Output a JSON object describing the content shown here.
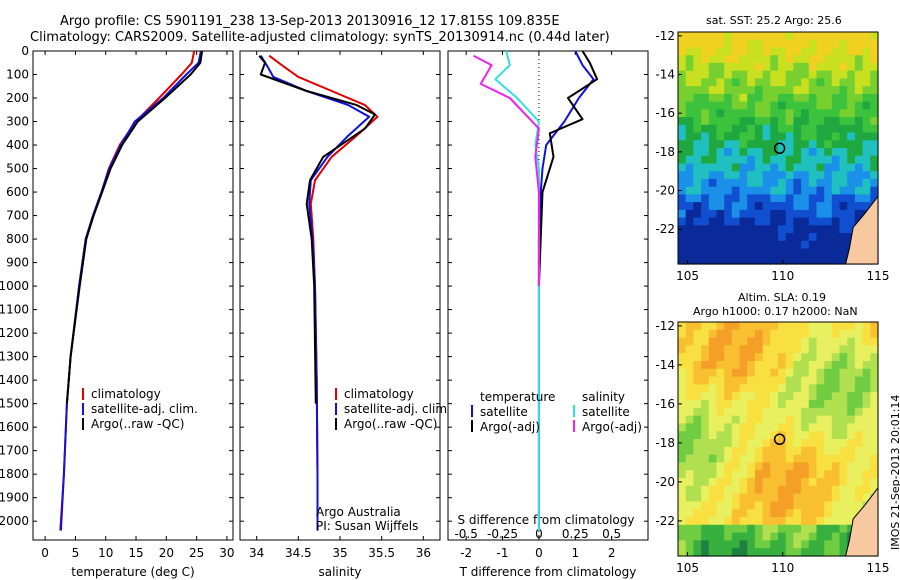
{
  "header": {
    "title_line1": "Argo profile: CS 5901191_238 13-Sep-2013 20130916_12 17.815S 109.835E",
    "title_line2": "Climatology: CARS2009. Satellite-adjusted climatology: synTS_20130914.nc (0.44d later)"
  },
  "colors": {
    "climatology": "#e00000",
    "satellite": "#1010e0",
    "argo": "#000000",
    "sal_satellite": "#30e0e0",
    "sal_argo": "#ee22ee"
  },
  "chart_data": [
    {
      "type": "line",
      "name": "temperature",
      "xlabel": "temperature (deg C)",
      "xlim": [
        -2,
        31
      ],
      "ylim": [
        0,
        2080
      ],
      "xticks": [
        0,
        5,
        10,
        15,
        20,
        25,
        30
      ],
      "yticks": [
        0,
        100,
        200,
        300,
        400,
        500,
        600,
        700,
        800,
        900,
        1000,
        1100,
        1200,
        1300,
        1400,
        1500,
        1600,
        1700,
        1800,
        1900,
        2000
      ],
      "legend": [
        "climatology",
        "satellite-adj. clim.",
        "Argo(..raw -QC)"
      ],
      "series": [
        {
          "name": "climatology",
          "color": "#e00000",
          "x": [
            24.6,
            24.2,
            22.5,
            18.8,
            15.0,
            12.3,
            10.5,
            9.3,
            7.9,
            6.7,
            5.6,
            4.2,
            3.6,
            3.1,
            2.5
          ],
          "y": [
            0,
            50,
            100,
            200,
            300,
            400,
            500,
            600,
            700,
            800,
            1000,
            1300,
            1500,
            1800,
            2040
          ]
        },
        {
          "name": "satellite-adj. clim.",
          "color": "#1010e0",
          "x": [
            25.7,
            25.3,
            23.3,
            19.5,
            14.8,
            12.5,
            10.6,
            9.3,
            7.9,
            6.7,
            5.6,
            4.2,
            3.6,
            3.1,
            2.6
          ],
          "y": [
            0,
            50,
            100,
            200,
            300,
            400,
            500,
            600,
            700,
            800,
            1000,
            1300,
            1500,
            1800,
            2040
          ]
        },
        {
          "name": "Argo(..raw -QC)",
          "color": "#000000",
          "x": [
            25.9,
            25.6,
            24.0,
            19.8,
            15.3,
            12.7,
            10.8,
            9.4,
            8.0,
            6.8,
            5.7,
            4.2,
            3.6
          ],
          "y": [
            0,
            50,
            100,
            200,
            300,
            400,
            500,
            600,
            700,
            800,
            1000,
            1300,
            1500
          ]
        }
      ]
    },
    {
      "type": "line",
      "name": "salinity",
      "xlabel": "salinity",
      "xlim": [
        33.8,
        36.2
      ],
      "ylim": [
        0,
        2080
      ],
      "xticks": [
        34,
        34.5,
        35,
        35.5,
        36
      ],
      "legend": [
        "climatology",
        "satellite-adj. clim.",
        "Argo(..raw -QC)"
      ],
      "annotation": [
        "Argo Australia",
        "PI: Susan Wijffels"
      ],
      "series": [
        {
          "name": "climatology",
          "color": "#e00000",
          "x": [
            34.15,
            34.3,
            34.5,
            34.9,
            35.3,
            35.45,
            35.2,
            34.9,
            34.7,
            34.65,
            34.68,
            34.7,
            34.72,
            34.73,
            34.73
          ],
          "y": [
            20,
            60,
            110,
            170,
            230,
            280,
            360,
            450,
            550,
            650,
            800,
            1000,
            1400,
            1800,
            2040
          ]
        },
        {
          "name": "satellite-adj. clim.",
          "color": "#1010e0",
          "x": [
            34.05,
            34.12,
            34.2,
            34.6,
            35.1,
            35.35,
            35.1,
            34.85,
            34.65,
            34.63,
            34.67,
            34.7,
            34.72,
            34.73,
            34.73
          ],
          "y": [
            20,
            60,
            110,
            170,
            230,
            280,
            360,
            450,
            550,
            650,
            800,
            1000,
            1400,
            1800,
            2040
          ]
        },
        {
          "name": "Argo(..raw -QC)",
          "color": "#000000",
          "x": [
            34.03,
            34.1,
            34.05,
            34.6,
            35.2,
            35.42,
            35.3,
            34.8,
            34.64,
            34.6,
            34.66,
            34.69,
            34.71
          ],
          "y": [
            20,
            50,
            100,
            170,
            230,
            270,
            330,
            450,
            550,
            650,
            800,
            1000,
            1500
          ]
        }
      ]
    },
    {
      "type": "line",
      "name": "difference",
      "xlabel": "T difference from climatology",
      "xlabel_top": "S difference from climatology",
      "xlim": [
        -2.5,
        3
      ],
      "ylim": [
        0,
        2080
      ],
      "xticks": [
        -2,
        -1,
        0,
        1,
        2
      ],
      "xticks_top": [
        "-0.5",
        "-0.25",
        "0",
        "0.25",
        "0.5"
      ],
      "legend_temperature": {
        "title": "temperature",
        "items": [
          "satellite",
          "Argo(-adj)"
        ]
      },
      "legend_salinity": {
        "title": "salinity",
        "items": [
          "satellite",
          "Argo(-adj)"
        ]
      },
      "series": [
        {
          "name": "T satellite",
          "color": "#1010e0",
          "x": [
            1.0,
            1.2,
            1.5,
            1.1,
            0.7,
            0.2,
            0.1,
            0.05,
            0.0,
            0.0,
            0.0,
            0.0
          ],
          "y": [
            0,
            60,
            120,
            200,
            300,
            400,
            500,
            600,
            800,
            1200,
            1600,
            2040
          ]
        },
        {
          "name": "T Argo(-adj)",
          "color": "#000000",
          "x": [
            1.2,
            1.4,
            1.6,
            0.8,
            1.2,
            0.3,
            0.4,
            0.1,
            0.05,
            0.0
          ],
          "y": [
            0,
            50,
            120,
            200,
            290,
            350,
            450,
            600,
            800,
            1000
          ]
        },
        {
          "name": "S satellite",
          "color": "#30e0e0",
          "x": [
            -0.9,
            -0.8,
            -1.2,
            -0.6,
            0.0,
            -0.1,
            0.0,
            0.0,
            0.0,
            0.0,
            0.0
          ],
          "y": [
            0,
            60,
            120,
            200,
            300,
            400,
            500,
            800,
            1200,
            1600,
            2040
          ]
        },
        {
          "name": "S Argo(-adj)",
          "color": "#ee22ee",
          "x": [
            -1.8,
            -1.3,
            -1.6,
            -0.8,
            0.0,
            -0.1,
            0.0,
            0.0,
            0.0
          ],
          "y": [
            20,
            60,
            140,
            200,
            330,
            450,
            600,
            800,
            1000
          ]
        }
      ]
    },
    {
      "type": "heatmap",
      "name": "sst-map",
      "title": "sat. SST: 25.2 Argo: 25.6",
      "xlim": [
        104.5,
        115
      ],
      "ylim": [
        -23.8,
        -11.8
      ],
      "xticks": [
        105,
        110,
        115
      ],
      "yticks": [
        -12,
        -14,
        -16,
        -18,
        -20,
        -22
      ],
      "marker": {
        "lon": 109.835,
        "lat": -17.815
      }
    },
    {
      "type": "heatmap",
      "name": "sla-map",
      "title_line1": "Altim. SLA: 0.19",
      "title_line2": "Argo h1000: 0.17 h2000: NaN",
      "xlim": [
        104.5,
        115
      ],
      "ylim": [
        -23.8,
        -11.8
      ],
      "xticks": [
        105,
        110,
        115
      ],
      "yticks": [
        -12,
        -14,
        -16,
        -18,
        -20,
        -22
      ],
      "marker": {
        "lon": 109.835,
        "lat": -17.815
      }
    }
  ],
  "footer": {
    "stamp": "IMOS 21-Sep-2013 20:01:14"
  }
}
